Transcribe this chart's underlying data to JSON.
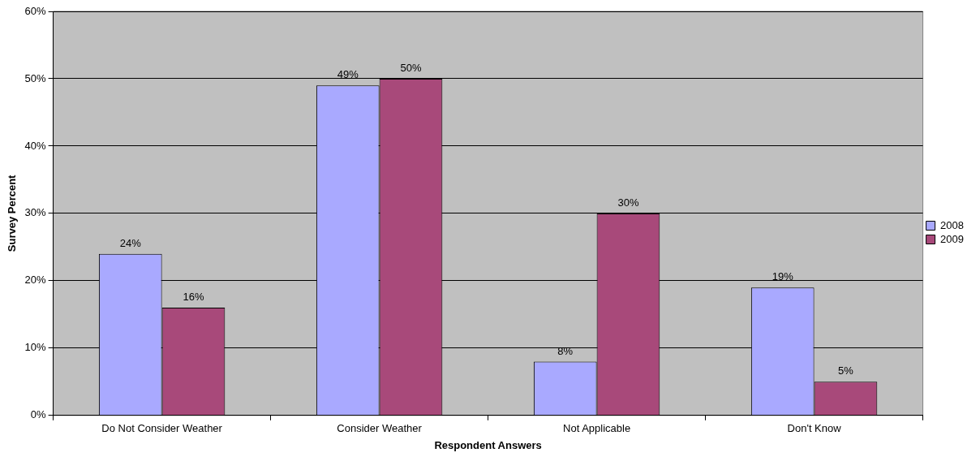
{
  "chart_data": {
    "type": "bar",
    "xlabel": "Respondent Answers",
    "ylabel": "Survey Percent",
    "categories": [
      "Do Not Consider Weather",
      "Consider Weather",
      "Not Applicable",
      "Don't Know"
    ],
    "series": [
      {
        "name": "2008",
        "color": "#a9a9ff",
        "values": [
          24,
          49,
          8,
          19
        ],
        "value_labels": [
          "24%",
          "49%",
          "8%",
          "19%"
        ]
      },
      {
        "name": "2009",
        "color": "#a8497a",
        "values": [
          16,
          50,
          30,
          5
        ],
        "value_labels": [
          "16%",
          "50%",
          "30%",
          "5%"
        ]
      }
    ],
    "ylim": [
      0,
      60
    ],
    "yticks": [
      {
        "value": 0,
        "label": "0%"
      },
      {
        "value": 10,
        "label": "10%"
      },
      {
        "value": 20,
        "label": "20%"
      },
      {
        "value": 30,
        "label": "30%"
      },
      {
        "value": 40,
        "label": "40%"
      },
      {
        "value": 50,
        "label": "50%"
      },
      {
        "value": 60,
        "label": "60%"
      }
    ],
    "grid": "y",
    "legend": "right"
  }
}
